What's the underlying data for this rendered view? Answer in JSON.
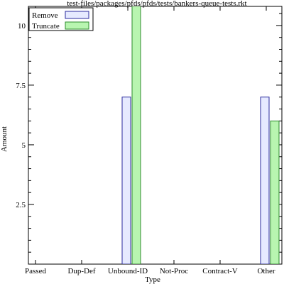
{
  "chart_data": {
    "type": "bar",
    "title": "test-files/packages/pfds/pfds/tests/bankers-queue-tests.rkt",
    "xlabel": "Type",
    "ylabel": "Amount",
    "categories": [
      "Passed",
      "Dup-Def",
      "Unbound-ID",
      "Not-Proc",
      "Contract-V",
      "Other"
    ],
    "series": [
      {
        "name": "Remove",
        "values": [
          0,
          0,
          7,
          0,
          0,
          7
        ],
        "color": "#e6eaff",
        "stroke": "#2b2b9e"
      },
      {
        "name": "Truncate",
        "values": [
          0,
          0,
          11,
          0,
          0,
          6
        ],
        "color": "#b8f5b0",
        "stroke": "#2e8b2e"
      }
    ],
    "ylim": [
      0,
      10.8
    ],
    "yticks": [
      2.5,
      5,
      7.5,
      10
    ],
    "ytick_labels": [
      "2.5",
      "5",
      "7.5",
      "10"
    ],
    "grid": false,
    "legend_position": "top-left"
  }
}
